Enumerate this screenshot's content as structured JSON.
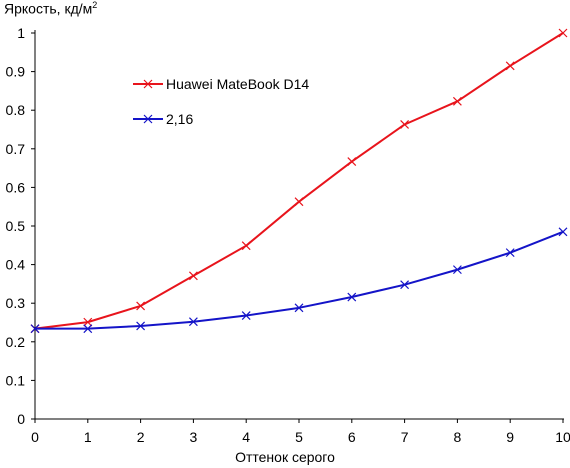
{
  "chart_data": {
    "type": "line",
    "ylabel": "Яркость, кд/м",
    "ylabel_sup": "2",
    "xlabel": "Оттенок серого",
    "x": [
      0,
      1,
      2,
      3,
      4,
      5,
      6,
      7,
      8,
      9,
      10
    ],
    "xlim": [
      0,
      10
    ],
    "ylim": [
      0,
      1
    ],
    "x_ticks": [
      "0",
      "1",
      "2",
      "3",
      "4",
      "5",
      "6",
      "7",
      "8",
      "9",
      "10"
    ],
    "y_ticks": [
      "0",
      "0.1",
      "0.2",
      "0.3",
      "0.4",
      "0.5",
      "0.6",
      "0.7",
      "0.8",
      "0.9",
      "1"
    ],
    "grid": false,
    "legend_position": "top-left",
    "series": [
      {
        "name": "Huawei MateBook D14",
        "color": "#e8141c",
        "marker": "x",
        "values": [
          0.234,
          0.251,
          0.293,
          0.371,
          0.449,
          0.563,
          0.667,
          0.763,
          0.823,
          0.915,
          1.0
        ]
      },
      {
        "name": "2,16",
        "color": "#1414c8",
        "marker": "x",
        "values": [
          0.234,
          0.234,
          0.241,
          0.252,
          0.268,
          0.288,
          0.316,
          0.348,
          0.387,
          0.431,
          0.485
        ]
      }
    ]
  }
}
